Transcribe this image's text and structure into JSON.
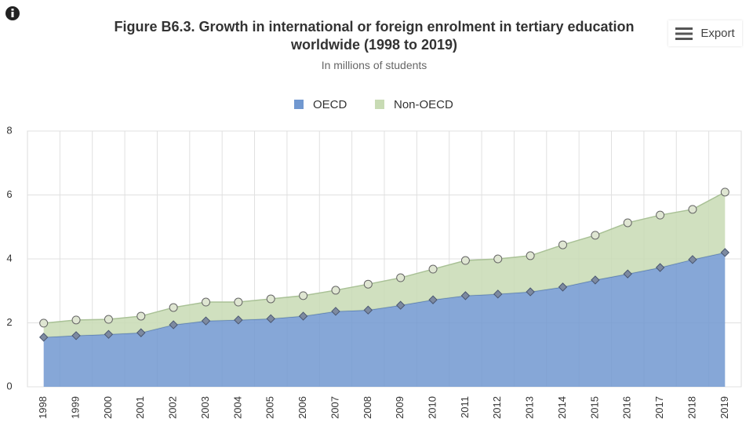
{
  "chart_data": {
    "type": "stacked-area",
    "title": "Figure B6.3. Growth in international or foreign enrolment in tertiary education worldwide (1998 to 2019)",
    "subtitle": "In millions of students",
    "export_label": "Export",
    "categories": [
      "1998",
      "1999",
      "2000",
      "2001",
      "2002",
      "2003",
      "2004",
      "2005",
      "2006",
      "2007",
      "2008",
      "2009",
      "2010",
      "2011",
      "2012",
      "2013",
      "2014",
      "2015",
      "2016",
      "2017",
      "2018",
      "2019"
    ],
    "series": [
      {
        "name": "OECD",
        "color": "#7198d0",
        "values": [
          1.55,
          1.6,
          1.64,
          1.69,
          1.94,
          2.06,
          2.09,
          2.13,
          2.21,
          2.36,
          2.4,
          2.55,
          2.72,
          2.85,
          2.9,
          2.97,
          3.12,
          3.34,
          3.53,
          3.73,
          3.98,
          4.2
        ]
      },
      {
        "name": "Non-OECD",
        "color": "#c8dbb4",
        "values": [
          0.44,
          0.49,
          0.47,
          0.52,
          0.54,
          0.59,
          0.56,
          0.62,
          0.64,
          0.66,
          0.81,
          0.86,
          0.96,
          1.1,
          1.1,
          1.13,
          1.32,
          1.4,
          1.6,
          1.64,
          1.57,
          1.89
        ]
      }
    ],
    "ylim": [
      0,
      8
    ],
    "yticks": [
      0,
      2,
      4,
      6,
      8
    ],
    "grid": true,
    "legend": "top"
  }
}
